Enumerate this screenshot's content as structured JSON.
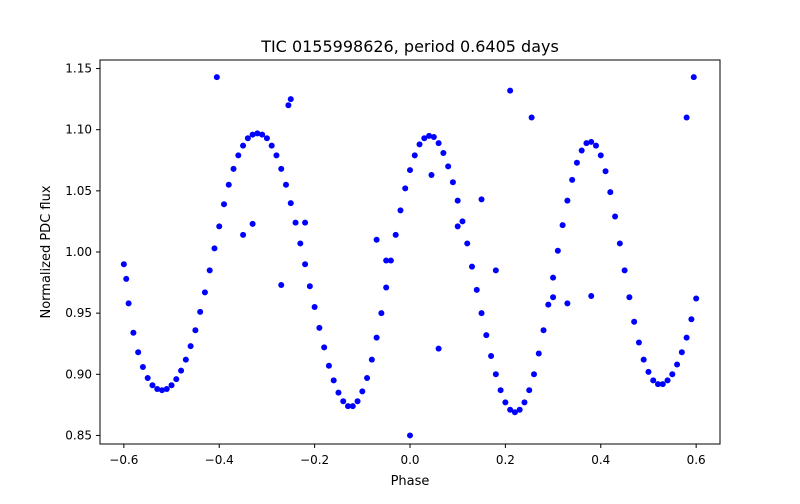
{
  "chart_data": {
    "type": "scatter",
    "title": "TIC 0155998626, period 0.6405 days",
    "xlabel": "Phase",
    "ylabel": "Normalized PDC flux",
    "xlim": [
      -0.65,
      0.65
    ],
    "ylim": [
      0.843,
      1.157
    ],
    "xticks": [
      -0.6,
      -0.4,
      -0.2,
      0.0,
      0.2,
      0.4,
      0.6
    ],
    "xtick_labels": [
      "−0.6",
      "−0.4",
      "−0.2",
      "0.0",
      "0.2",
      "0.4",
      "0.6"
    ],
    "yticks": [
      0.85,
      0.9,
      0.95,
      1.0,
      1.05,
      1.1,
      1.15
    ],
    "ytick_labels": [
      "0.85",
      "0.90",
      "0.95",
      "1.00",
      "1.05",
      "1.10",
      "1.15"
    ],
    "grid": false,
    "marker_color": "#0000ff",
    "series": [
      {
        "marker": "circle",
        "x": [
          -0.6,
          -0.59,
          -0.58,
          -0.57,
          -0.56,
          -0.55,
          -0.54,
          -0.53,
          -0.52,
          -0.51,
          -0.5,
          -0.49,
          -0.48,
          -0.47,
          -0.46,
          -0.45,
          -0.44,
          -0.43,
          -0.42,
          -0.41,
          -0.4,
          -0.39,
          -0.38,
          -0.37,
          -0.36,
          -0.35,
          -0.34,
          -0.33,
          -0.32,
          -0.31,
          -0.3,
          -0.29,
          -0.28,
          -0.27,
          -0.26,
          -0.25,
          -0.24,
          -0.23,
          -0.22,
          -0.21,
          -0.2,
          -0.19,
          -0.18,
          -0.17,
          -0.16,
          -0.15,
          -0.14,
          -0.13,
          -0.12,
          -0.11,
          -0.1,
          -0.09,
          -0.08,
          -0.07,
          -0.06,
          -0.05,
          -0.04,
          -0.03,
          -0.02,
          -0.01,
          0.0,
          0.01,
          0.02,
          0.03,
          0.04,
          0.05,
          0.06,
          0.07,
          0.08,
          0.09,
          0.1,
          0.11,
          0.12,
          0.13,
          0.14,
          0.15,
          0.16,
          0.17,
          0.18,
          0.19,
          0.2,
          0.21,
          0.22,
          0.23,
          0.24,
          0.25,
          0.26,
          0.27,
          0.28,
          0.29,
          0.3,
          0.31,
          0.32,
          0.33,
          0.34,
          0.35,
          0.36,
          0.37,
          0.38,
          0.39,
          0.4,
          0.41,
          0.42,
          0.43,
          0.44,
          0.45,
          0.46,
          0.47,
          0.48,
          0.49,
          0.5,
          0.51,
          0.52,
          0.53,
          0.54,
          0.55,
          0.56,
          0.57,
          0.58,
          0.59,
          0.6,
          -0.405,
          0.595,
          0.21,
          -0.25,
          0.045,
          -0.05,
          0.1,
          0.15,
          0.18,
          0.3,
          0.33,
          0.38,
          -0.35,
          -0.33,
          -0.22,
          -0.27,
          0.0,
          -0.07,
          0.06,
          -0.595,
          0.58,
          0.255,
          -0.255
        ],
        "y": [
          0.99,
          0.958,
          0.934,
          0.918,
          0.906,
          0.897,
          0.891,
          0.888,
          0.887,
          0.888,
          0.891,
          0.896,
          0.903,
          0.912,
          0.923,
          0.936,
          0.951,
          0.967,
          0.985,
          1.003,
          1.021,
          1.039,
          1.055,
          1.068,
          1.079,
          1.087,
          1.093,
          1.096,
          1.097,
          1.096,
          1.093,
          1.087,
          1.079,
          1.068,
          1.055,
          1.04,
          1.024,
          1.007,
          0.99,
          0.972,
          0.955,
          0.938,
          0.922,
          0.907,
          0.895,
          0.885,
          0.878,
          0.874,
          0.874,
          0.878,
          0.886,
          0.897,
          0.912,
          0.93,
          0.95,
          0.971,
          0.993,
          1.014,
          1.034,
          1.052,
          1.067,
          1.079,
          1.088,
          1.093,
          1.095,
          1.094,
          1.089,
          1.081,
          1.07,
          1.057,
          1.042,
          1.025,
          1.007,
          0.988,
          0.969,
          0.95,
          0.932,
          0.915,
          0.9,
          0.887,
          0.877,
          0.871,
          0.869,
          0.871,
          0.877,
          0.887,
          0.9,
          0.917,
          0.936,
          0.957,
          0.979,
          1.001,
          1.022,
          1.042,
          1.059,
          1.073,
          1.083,
          1.089,
          1.09,
          1.087,
          1.079,
          1.066,
          1.049,
          1.029,
          1.007,
          0.985,
          0.963,
          0.943,
          0.926,
          0.912,
          0.902,
          0.895,
          0.892,
          0.892,
          0.895,
          0.9,
          0.908,
          0.918,
          0.93,
          0.945,
          0.962,
          1.143,
          1.143,
          1.132,
          1.125,
          1.063,
          0.993,
          1.021,
          1.043,
          0.985,
          0.963,
          0.958,
          0.964,
          1.014,
          1.023,
          1.024,
          0.973,
          0.85,
          1.01,
          0.921,
          0.978,
          1.11,
          1.11,
          1.12
        ]
      }
    ]
  }
}
